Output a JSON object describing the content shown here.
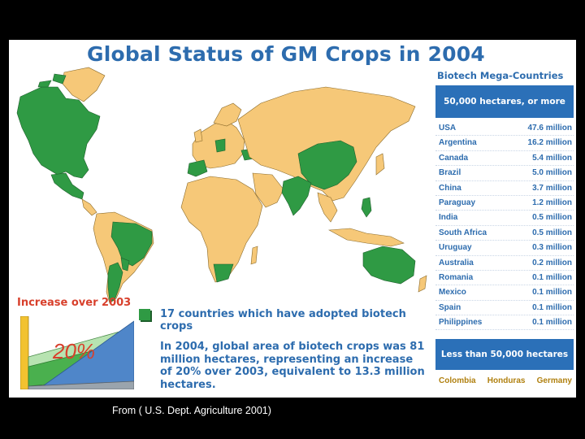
{
  "title": "Global Status of GM Crops in 2004",
  "colors": {
    "biotech": "#2f9a44",
    "other": "#f6c878",
    "ocean": "#ffffff",
    "accent_blue": "#2b70b8",
    "title_blue": "#2d6cae",
    "increase_red": "#d8402c"
  },
  "panel": {
    "title": "Biotech Mega-Countries",
    "mega_label": "50,000 hectares, or more",
    "countries": [
      {
        "name": "USA",
        "value": "47.6 million"
      },
      {
        "name": "Argentina",
        "value": "16.2 million"
      },
      {
        "name": "Canada",
        "value": "5.4 million"
      },
      {
        "name": "Brazil",
        "value": "5.0 million"
      },
      {
        "name": "China",
        "value": "3.7 million"
      },
      {
        "name": "Paraguay",
        "value": "1.2 million"
      },
      {
        "name": "India",
        "value": "0.5 million"
      },
      {
        "name": "South Africa",
        "value": "0.5 million"
      },
      {
        "name": "Uruguay",
        "value": "0.3 million"
      },
      {
        "name": "Australia",
        "value": "0.2 million"
      },
      {
        "name": "Romania",
        "value": "0.1 million"
      },
      {
        "name": "Mexico",
        "value": "0.1 million"
      },
      {
        "name": "Spain",
        "value": "0.1 million"
      },
      {
        "name": "Philippines",
        "value": "0.1 million"
      }
    ],
    "less_label": "Less than 50,000 hectares",
    "small_countries": [
      "Colombia",
      "Honduras",
      "Germany"
    ]
  },
  "increase": {
    "label": "Increase over 2003",
    "percent_label": "20%"
  },
  "legend": {
    "text": "17 countries which have adopted biotech crops"
  },
  "summary": "In 2004, global area of biotech crops was 81 million hectares, representing an increase of 20% over 2003, equivalent to 13.3 million hectares.",
  "source": "From ( U.S. Dept. Agriculture 2001)"
}
